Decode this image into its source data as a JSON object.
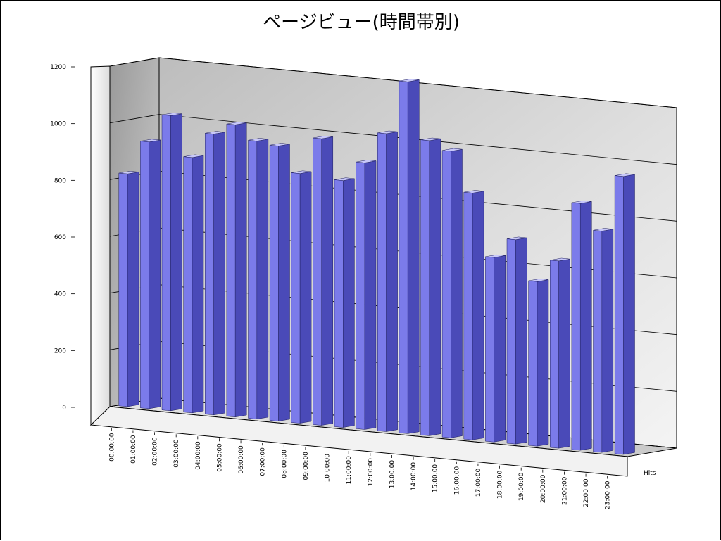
{
  "chart_data": {
    "type": "bar",
    "title": "ページビュー(時間帯別)",
    "xlabel": "",
    "ylabel": "",
    "ylim": [
      0,
      1200
    ],
    "yticks": [
      "0",
      "200",
      "400",
      "600",
      "800",
      "1000",
      "1200"
    ],
    "categories": [
      "00:00:00",
      "01:00:00",
      "02:00:00",
      "03:00:00",
      "04:00:00",
      "05:00:00",
      "06:00:00",
      "07:00:00",
      "08:00:00",
      "09:00:00",
      "10:00:00",
      "11:00:00",
      "12:00:00",
      "13:00:00",
      "14:00:00",
      "15:00:00",
      "16:00:00",
      "17:00:00",
      "18:00:00",
      "19:00:00",
      "20:00:00",
      "21:00:00",
      "22:00:00",
      "23:00:00"
    ],
    "series": [
      {
        "name": "Hits",
        "values": [
          820,
          940,
          1040,
          900,
          990,
          1030,
          980,
          970,
          880,
          1010,
          870,
          940,
          1050,
          1240,
          1040,
          1010,
          870,
          650,
          720,
          580,
          660,
          870,
          780,
          980
        ]
      }
    ],
    "grid": true,
    "legend": "none",
    "colors": {
      "bar_front": "#7b7bea",
      "bar_side": "#4a4ab8",
      "bar_top": "#c8c8fa",
      "wall_back": "#d0d0d0",
      "wall_left": "#a9a9a9",
      "floor": "#dcdcdc"
    }
  }
}
